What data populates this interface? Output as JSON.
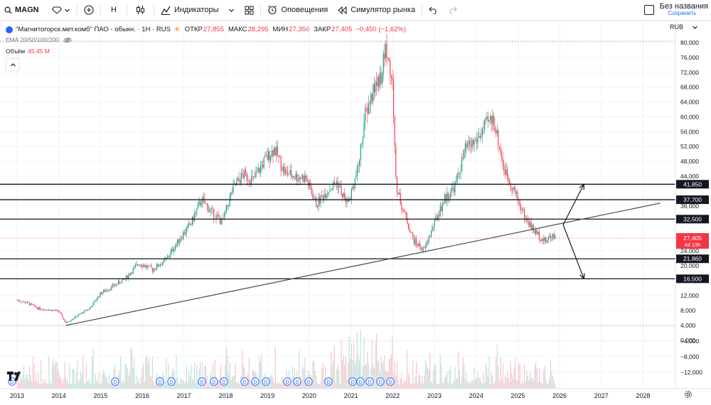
{
  "toolbar": {
    "symbol": "MAGN",
    "interval": "H",
    "indicators_label": "Индикаторы",
    "alerts_label": "Оповещения",
    "replay_label": "Симулятор рынка",
    "layout_name": "Без названия",
    "layout_status": "Сохранить"
  },
  "legend": {
    "title": "\"Магнитогорск.мет.комб\" ПАО - обыкн. · 1Н · RUS",
    "open_label": "ОТКР",
    "open": "27,855",
    "high_label": "МАКС",
    "high": "28,295",
    "low_label": "МИН",
    "low": "27,350",
    "close_label": "ЗАКР",
    "close": "27,405",
    "change": "−0,450 (−1,62%)"
  },
  "ema_label": "EMA 20/50/100/200",
  "volume": {
    "label": "Объём",
    "value": "45,45 M"
  },
  "currency": "RUB",
  "colors": {
    "up": "#089981",
    "down": "#f23645",
    "line": "#131722",
    "axis_text": "#131722",
    "grid": "#f0f3fa"
  },
  "chart_data": {
    "type": "candlestick",
    "x_tick_labels": [
      "2013",
      "2014",
      "2015",
      "2016",
      "2017",
      "2018",
      "2019",
      "2020",
      "2021",
      "2022",
      "2023",
      "2024",
      "2025",
      "2026",
      "2027",
      "2028"
    ],
    "y_tick_labels": [
      "80,000",
      "76,000",
      "72,000",
      "68,000",
      "64,000",
      "60,000",
      "56,000",
      "52,000",
      "48,000",
      "44,000",
      "36,000",
      "24,000",
      "20,000",
      "12,000",
      "8,000",
      "4,000",
      "0,000",
      "−4,000",
      "−8,000",
      "−12,000"
    ],
    "price_path": [
      [
        "2013-01",
        10.8
      ],
      [
        "2013-04",
        10.0
      ],
      [
        "2013-07",
        8.6
      ],
      [
        "2013-10",
        8.2
      ],
      [
        "2014-01",
        7.8
      ],
      [
        "2014-03",
        4.6
      ],
      [
        "2014-06",
        6.4
      ],
      [
        "2014-10",
        8.7
      ],
      [
        "2015-01",
        12.6
      ],
      [
        "2015-04",
        14.2
      ],
      [
        "2015-08",
        16.4
      ],
      [
        "2015-12",
        20.7
      ],
      [
        "2016-04",
        19.0
      ],
      [
        "2016-08",
        21.8
      ],
      [
        "2016-12",
        27.6
      ],
      [
        "2017-03",
        31.3
      ],
      [
        "2017-06",
        37.7
      ],
      [
        "2017-09",
        34.3
      ],
      [
        "2017-12",
        31.6
      ],
      [
        "2018-03",
        40.5
      ],
      [
        "2018-06",
        44.5
      ],
      [
        "2018-09",
        43.0
      ],
      [
        "2018-12",
        48.0
      ],
      [
        "2019-03",
        51.5
      ],
      [
        "2019-06",
        45.0
      ],
      [
        "2019-09",
        44.0
      ],
      [
        "2019-12",
        43.5
      ],
      [
        "2020-03",
        36.5
      ],
      [
        "2020-06",
        40.0
      ],
      [
        "2020-09",
        42.5
      ],
      [
        "2020-12",
        36.5
      ],
      [
        "2021-03",
        46.0
      ],
      [
        "2021-05",
        60.0
      ],
      [
        "2021-08",
        68.5
      ],
      [
        "2021-10",
        72.0
      ],
      [
        "2021-11",
        79.5
      ],
      [
        "2022-01",
        68.0
      ],
      [
        "2022-02",
        41.0
      ],
      [
        "2022-04",
        35.0
      ],
      [
        "2022-07",
        26.8
      ],
      [
        "2022-10",
        24.0
      ],
      [
        "2023-01",
        31.5
      ],
      [
        "2023-04",
        38.0
      ],
      [
        "2023-07",
        41.5
      ],
      [
        "2023-10",
        51.5
      ],
      [
        "2024-01",
        53.5
      ],
      [
        "2024-04",
        58.0
      ],
      [
        "2024-06",
        59.6
      ],
      [
        "2024-09",
        46.0
      ],
      [
        "2024-12",
        40.0
      ],
      [
        "2025-03",
        33.0
      ],
      [
        "2025-06",
        29.0
      ],
      [
        "2025-09",
        26.5
      ],
      [
        "2025-11",
        28.5
      ],
      [
        "2025-12",
        27.4
      ]
    ],
    "last_price": "27,405",
    "countdown": "4d 13h",
    "horizontal_levels": [
      "41,850",
      "37,700",
      "32,500",
      "21,860",
      "16,500"
    ],
    "trendline": {
      "from": [
        "2014-03",
        4.0
      ],
      "to": [
        "2028-06",
        36.8
      ]
    },
    "projection_arrows": [
      {
        "from": [
          "2026-02",
          31.0
        ],
        "to": [
          "2026-08",
          41.85
        ]
      },
      {
        "from": [
          "2026-02",
          31.0
        ],
        "to": [
          "2026-08",
          16.5
        ]
      }
    ],
    "dividend_markers": [
      "D",
      "D",
      "D",
      "D",
      "D",
      "D",
      "D",
      "D",
      "D",
      "D",
      "D",
      "D",
      "D",
      "D",
      "D",
      "D",
      "D",
      "D",
      "D"
    ]
  }
}
